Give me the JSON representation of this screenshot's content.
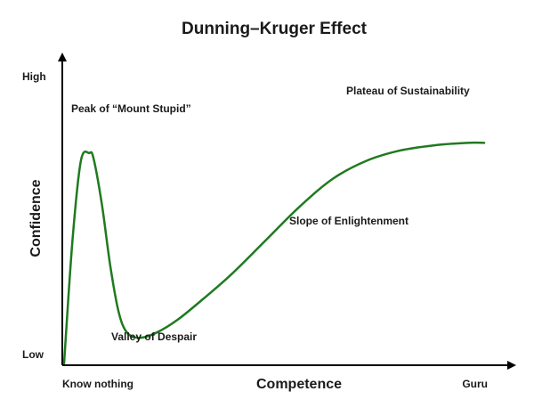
{
  "chart_data": {
    "type": "line",
    "title": "Dunning–Kruger Effect",
    "xlabel": "Competence",
    "ylabel": "Confidence",
    "x_tick_labels": [
      "Know nothing",
      "Guru"
    ],
    "y_tick_labels": [
      "Low",
      "High"
    ],
    "xlim": [
      0,
      100
    ],
    "ylim": [
      0,
      100
    ],
    "grid": false,
    "series_color": "#1f7a1f",
    "x": [
      0,
      2,
      4,
      6,
      7,
      9,
      11,
      13,
      15,
      18,
      22,
      27,
      33,
      40,
      48,
      56,
      64,
      72,
      80,
      88,
      96,
      100
    ],
    "y": [
      0,
      48,
      79,
      82,
      80,
      62,
      38,
      20,
      12,
      10,
      12,
      17,
      25,
      35,
      48,
      61,
      72,
      79,
      83,
      85,
      86,
      86
    ],
    "annotations": [
      {
        "text": "Peak of “Mount Stupid”",
        "x": 6,
        "y": 82
      },
      {
        "text": "Valley of Despair",
        "x": 18,
        "y": 10
      },
      {
        "text": "Slope of Enlightenment",
        "x": 53,
        "y": 51
      },
      {
        "text": "Plateau of Sustainability",
        "x": 91,
        "y": 86
      }
    ]
  }
}
